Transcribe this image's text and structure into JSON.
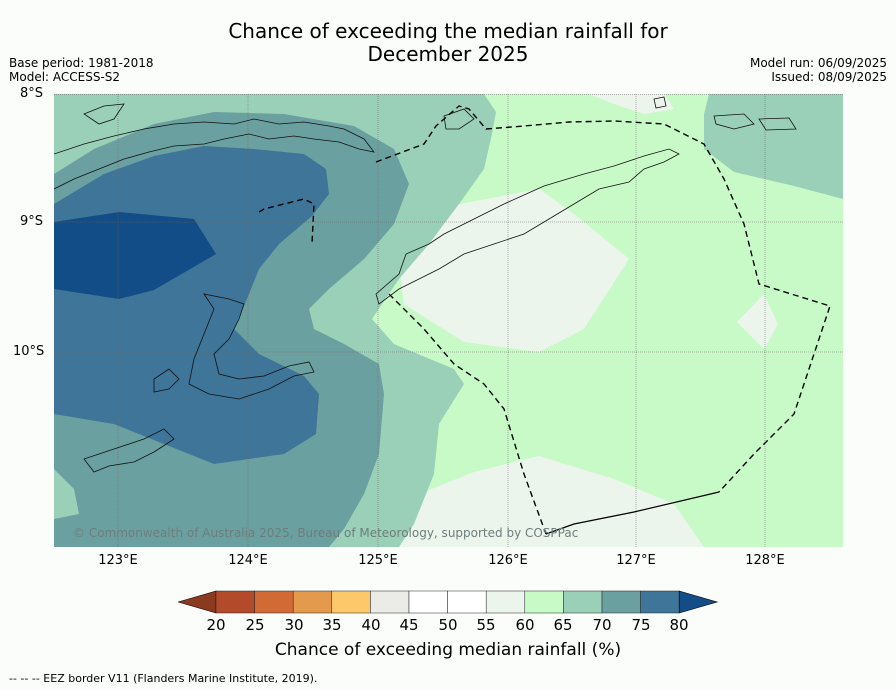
{
  "title_line1": "Chance of exceeding the median rainfall for",
  "title_line2": "December 2025",
  "base_period": "Base period: 1981-2018",
  "model": "Model: ACCESS-S2",
  "model_run": "Model run: 06/09/2025",
  "issued": "Issued: 08/09/2025",
  "lat_labels": [
    "8°S",
    "9°S",
    "10°S"
  ],
  "lon_labels": [
    "123°E",
    "124°E",
    "125°E",
    "126°E",
    "127°E",
    "128°E"
  ],
  "copyright": "© Commonwealth of Australia 2025, Bureau of Meteorology, supported by COSPPac",
  "colorbar": {
    "ticks": [
      "20",
      "25",
      "30",
      "35",
      "40",
      "45",
      "50",
      "55",
      "60",
      "65",
      "70",
      "75",
      "80"
    ],
    "colors": [
      "#8b3a1f",
      "#b34a2a",
      "#d26a36",
      "#e39a4c",
      "#fdc86a",
      "#ebebe7",
      "#ffffff",
      "#ffffff",
      "#ecf5ec",
      "#c8fac8",
      "#9bd0b8",
      "#6ba0a0",
      "#3e7598",
      "#134d87"
    ],
    "label": "Chance of exceeding median rainfall (%)"
  },
  "footer": "--  --  -- EEZ border V11 (Flanders Marine Institute, 2019)."
}
